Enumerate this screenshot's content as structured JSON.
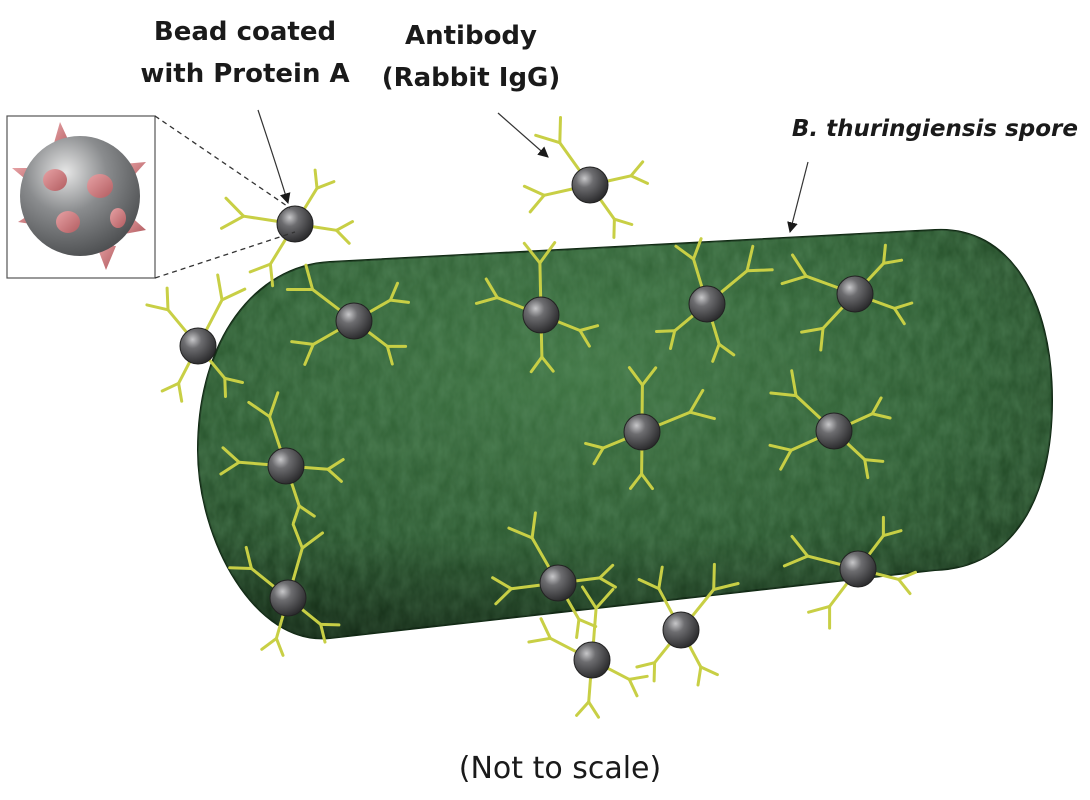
{
  "labels": {
    "bead_line1": "Bead coated",
    "bead_line2": "with Protein A",
    "antibody_line1": "Antibody",
    "antibody_line2": "(Rabbit IgG)",
    "spore": "B. thuringiensis spore",
    "footnote": "(Not to scale)"
  },
  "colors": {
    "spore": "#2f5e33",
    "spore_dark": "#17361b",
    "spore_light": "#4f8a52",
    "bead": "#5b5b5d",
    "antibody": "#c8cf45",
    "protein_a": "#cf7d80"
  },
  "icons": {
    "bead": "grey-sphere-bead",
    "antibody": "y-shaped-antibody",
    "inset": "bead-with-protein-a-spikes"
  }
}
